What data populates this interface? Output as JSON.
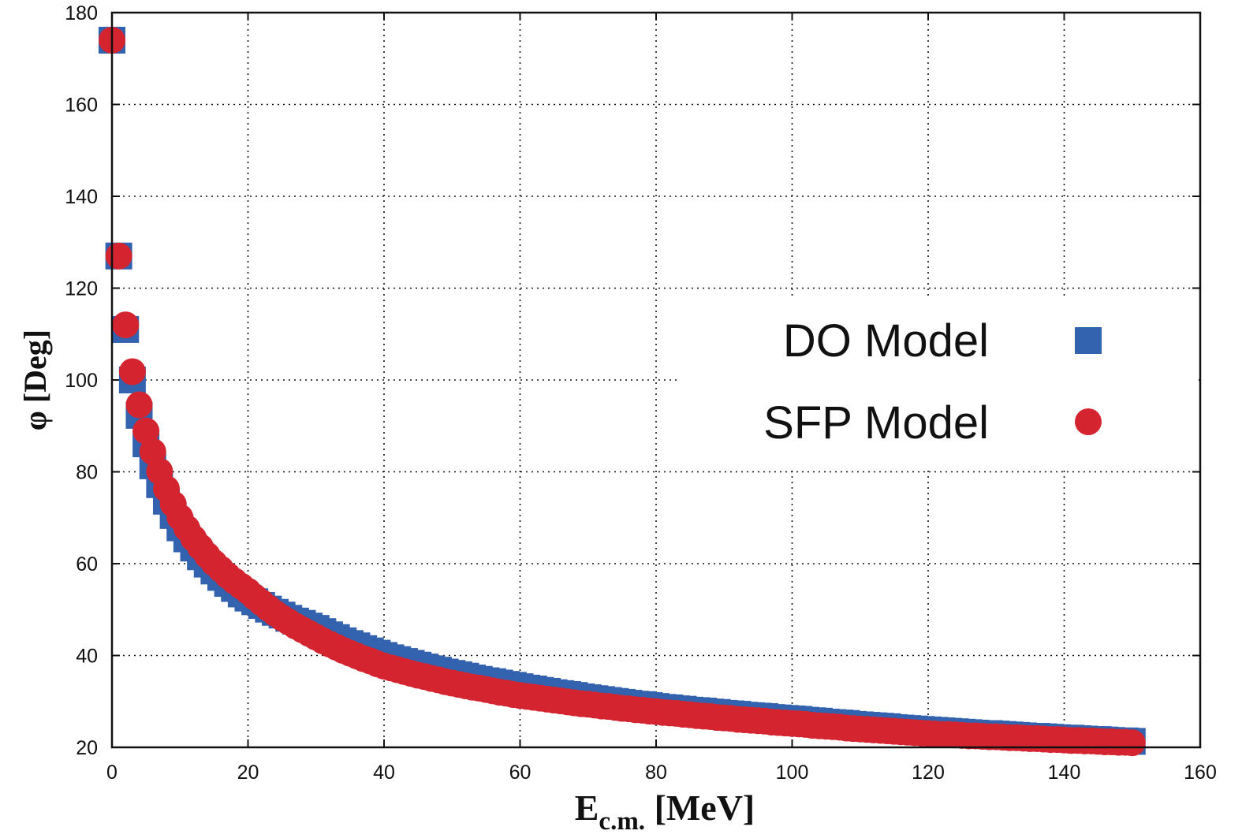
{
  "chart_data": {
    "type": "scatter",
    "title": "",
    "xlabel": "E",
    "xlabel_subscript": "c.m.",
    "xlabel_unit": " [MeV]",
    "ylabel": "φ  [Deg]",
    "xlim": [
      0,
      160
    ],
    "ylim": [
      20,
      180
    ],
    "xticks": [
      0,
      20,
      40,
      60,
      80,
      100,
      120,
      140,
      160
    ],
    "yticks": [
      20,
      40,
      60,
      80,
      100,
      120,
      140,
      160,
      180
    ],
    "xtick_labels": [
      "0",
      "20",
      "40",
      "60",
      "80",
      "100",
      "120",
      "140",
      "160"
    ],
    "ytick_labels": [
      "20",
      "40",
      "60",
      "80",
      "100",
      "120",
      "140",
      "160",
      "180"
    ],
    "grid": true,
    "legend_position": "center-right",
    "x": [
      0,
      1,
      2,
      3,
      4,
      5,
      6,
      7,
      8,
      9,
      10,
      11,
      12,
      13,
      14,
      15,
      16,
      17,
      18,
      19,
      20,
      21,
      22,
      23,
      24,
      25,
      26,
      27,
      28,
      29,
      30,
      31,
      32,
      33,
      34,
      35,
      36,
      37,
      38,
      39,
      40,
      41,
      42,
      43,
      44,
      45,
      46,
      47,
      48,
      49,
      50,
      51,
      52,
      53,
      54,
      55,
      56,
      57,
      58,
      59,
      60,
      61,
      62,
      63,
      64,
      65,
      66,
      67,
      68,
      69,
      70,
      71,
      72,
      73,
      74,
      75,
      76,
      77,
      78,
      79,
      80,
      81,
      82,
      83,
      84,
      85,
      86,
      87,
      88,
      89,
      90,
      91,
      92,
      93,
      94,
      95,
      96,
      97,
      98,
      99,
      100,
      101,
      102,
      103,
      104,
      105,
      106,
      107,
      108,
      109,
      110,
      111,
      112,
      113,
      114,
      115,
      116,
      117,
      118,
      119,
      120,
      121,
      122,
      123,
      124,
      125,
      126,
      127,
      128,
      129,
      130,
      131,
      132,
      133,
      134,
      135,
      136,
      137,
      138,
      139,
      140,
      141,
      142,
      143,
      144,
      145,
      146,
      147,
      148,
      149,
      150
    ],
    "series": [
      {
        "name": "DO Model",
        "marker": "square",
        "color": "#3362ae",
        "values": [
          174,
          127,
          111,
          100,
          92.3,
          86.1,
          81.3,
          77.2,
          73.6,
          70.5,
          67.8,
          65.4,
          63.4,
          61.5,
          59.9,
          58.4,
          57.0,
          55.7,
          54.6,
          53.4,
          52.5,
          51.7,
          50.9,
          50.1,
          49.4,
          48.8,
          48.1,
          47.5,
          47.0,
          46.4,
          45.9,
          45.2,
          44.5,
          43.9,
          43.2,
          42.6,
          42.1,
          41.5,
          41.0,
          40.5,
          40.0,
          39.5,
          39.1,
          38.7,
          38.3,
          37.9,
          37.5,
          37.1,
          36.8,
          36.4,
          36.1,
          35.8,
          35.5,
          35.1,
          34.8,
          34.5,
          34.3,
          34.0,
          33.7,
          33.5,
          33.2,
          32.9,
          32.7,
          32.4,
          32.2,
          31.9,
          31.7,
          31.5,
          31.3,
          31.0,
          30.8,
          30.6,
          30.4,
          30.2,
          30.0,
          29.8,
          29.6,
          29.4,
          29.3,
          29.1,
          28.9,
          28.7,
          28.6,
          28.4,
          28.3,
          28.1,
          28.0,
          27.9,
          27.7,
          27.6,
          27.4,
          27.3,
          27.2,
          27.0,
          26.9,
          26.8,
          26.7,
          26.5,
          26.4,
          26.3,
          26.2,
          26.1,
          25.9,
          25.8,
          25.7,
          25.5,
          25.4,
          25.3,
          25.2,
          25.0,
          24.9,
          24.8,
          24.7,
          24.6,
          24.5,
          24.3,
          24.2,
          24.1,
          24.0,
          23.9,
          23.8,
          23.7,
          23.6,
          23.5,
          23.4,
          23.3,
          23.2,
          23.1,
          23.0,
          23.0,
          22.9,
          22.8,
          22.7,
          22.6,
          22.5,
          22.4,
          22.4,
          22.3,
          22.2,
          22.1,
          22.0,
          22.0,
          21.9,
          21.8,
          21.7,
          21.7,
          21.6,
          21.5,
          21.4,
          21.4,
          21.3
        ]
      },
      {
        "name": "SFP Model",
        "marker": "circle",
        "color": "#d42430",
        "values": [
          174,
          127,
          112,
          101.8,
          94.6,
          88.9,
          84.4,
          80.1,
          76.3,
          73.0,
          70.1,
          67.7,
          65.5,
          63.6,
          61.8,
          60.2,
          58.8,
          57.4,
          56.2,
          55.1,
          54.0,
          52.7,
          51.5,
          50.3,
          49.2,
          48.2,
          47.3,
          46.4,
          45.6,
          44.8,
          44.0,
          43.2,
          42.5,
          41.8,
          41.1,
          40.5,
          39.9,
          39.3,
          38.8,
          38.2,
          37.7,
          37.3,
          36.9,
          36.5,
          36.1,
          35.7,
          35.4,
          35.0,
          34.7,
          34.3,
          34.0,
          33.7,
          33.4,
          33.1,
          32.9,
          32.6,
          32.3,
          32.0,
          31.8,
          31.5,
          31.3,
          31.1,
          30.9,
          30.7,
          30.5,
          30.3,
          30.1,
          29.9,
          29.7,
          29.5,
          29.4,
          29.2,
          29.0,
          28.9,
          28.7,
          28.5,
          28.4,
          28.2,
          28.1,
          27.9,
          27.8,
          27.6,
          27.5,
          27.4,
          27.2,
          27.1,
          26.9,
          26.8,
          26.7,
          26.5,
          26.4,
          26.3,
          26.1,
          26.0,
          25.9,
          25.8,
          25.7,
          25.5,
          25.4,
          25.3,
          25.2,
          25.1,
          25.0,
          24.8,
          24.7,
          24.6,
          24.5,
          24.4,
          24.2,
          24.1,
          24.0,
          23.9,
          23.8,
          23.7,
          23.6,
          23.5,
          23.4,
          23.3,
          23.2,
          23.1,
          23.0,
          22.9,
          22.8,
          22.8,
          22.7,
          22.6,
          22.5,
          22.5,
          22.4,
          22.3,
          22.3,
          22.2,
          22.1,
          22.1,
          22.0,
          21.9,
          21.9,
          21.8,
          21.7,
          21.7,
          21.6,
          21.5,
          21.5,
          21.4,
          21.4,
          21.3,
          21.2,
          21.2,
          21.1,
          21.1,
          21.0
        ]
      }
    ]
  }
}
